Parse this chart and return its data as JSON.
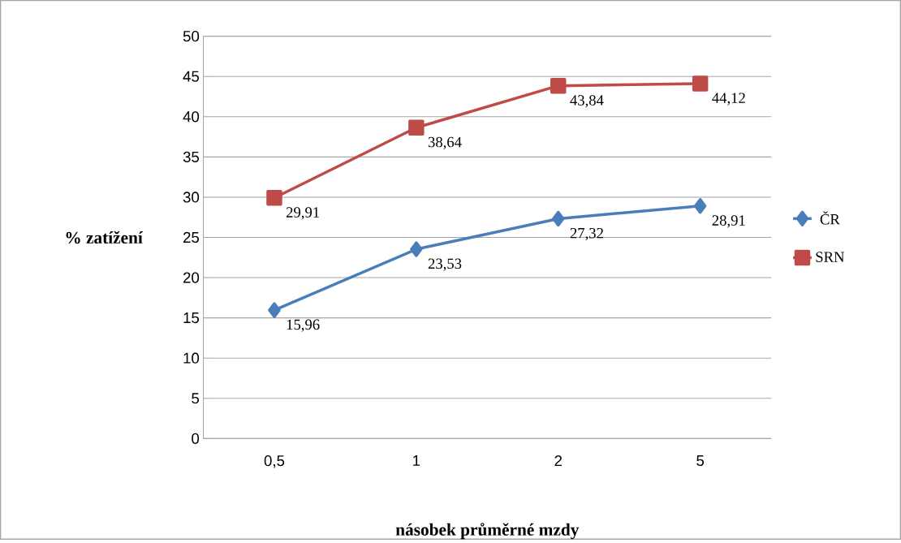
{
  "chart_data": {
    "type": "line",
    "xlabel": "násobek průměrné mzdy",
    "ylabel": "% zatížení",
    "categories": [
      "0,5",
      "1",
      "2",
      "5"
    ],
    "series": [
      {
        "name": "ČR",
        "color": "#4a7ebb",
        "marker": "diamond",
        "values": [
          15.96,
          23.53,
          27.32,
          28.91
        ],
        "value_labels": [
          "15,96",
          "23,53",
          "27,32",
          "28,91"
        ]
      },
      {
        "name": "SRN",
        "color": "#be4b48",
        "marker": "square",
        "values": [
          29.91,
          38.64,
          43.84,
          44.12
        ],
        "value_labels": [
          "29,91",
          "38,64",
          "43,84",
          "44,12"
        ]
      }
    ],
    "ylim": [
      0,
      50
    ],
    "yticks": [
      0,
      5,
      10,
      15,
      20,
      25,
      30,
      35,
      40,
      45,
      50
    ],
    "grid": "y",
    "legend": "right",
    "line_style": "solid"
  }
}
